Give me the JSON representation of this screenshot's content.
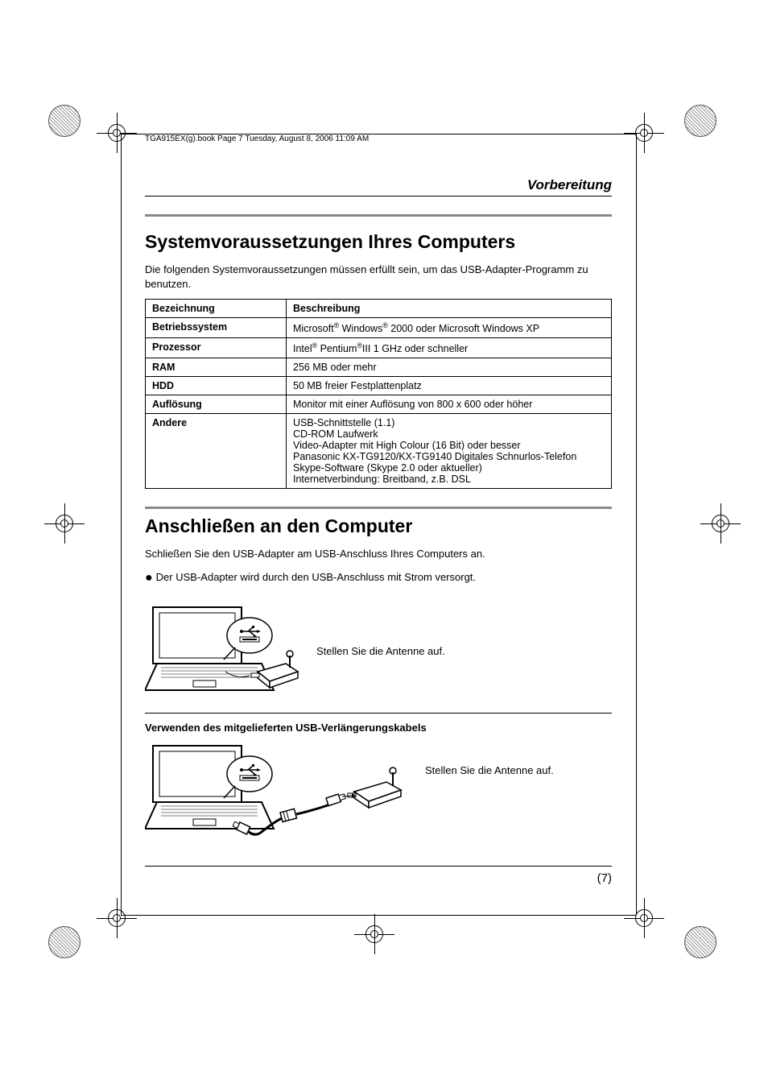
{
  "header": {
    "running_head": "TGA915EX(g).book  Page 7  Tuesday, August 8, 2006  11:09 AM",
    "section_name": "Vorbereitung"
  },
  "section1": {
    "heading": "Systemvoraussetzungen Ihres Computers",
    "intro": "Die folgenden Systemvoraussetzungen müssen erfüllt sein, um das USB-Adapter-Programm zu benutzen."
  },
  "table": {
    "columns": [
      "Bezeichnung",
      "Beschreibung"
    ],
    "rows": [
      {
        "label": "Betriebssystem",
        "value_html": "Microsoft<span class=\"sup\">®</span> Windows<span class=\"sup\">®</span> 2000 oder Microsoft Windows XP"
      },
      {
        "label": "Prozessor",
        "value_html": "Intel<span class=\"sup\">®</span> Pentium<span class=\"sup\">®</span>III 1 GHz oder schneller"
      },
      {
        "label": "RAM",
        "value_html": "256 MB oder mehr"
      },
      {
        "label": "HDD",
        "value_html": "50 MB freier Festplattenplatz"
      },
      {
        "label": "Auflösung",
        "value_html": "Monitor mit einer Auflösung von 800 x 600 oder höher"
      },
      {
        "label": "Andere",
        "value_html": "USB-Schnittstelle (1.1)<br>CD-ROM Laufwerk<br>Video-Adapter mit High Colour (16 Bit) oder besser<br>Panasonic KX-TG9120/KX-TG9140 Digitales Schnurlos-Telefon<br>Skype-Software (Skype 2.0 oder aktueller)<br>Internetverbindung: Breitband, z.B. DSL"
      }
    ]
  },
  "section2": {
    "heading": "Anschließen an den Computer",
    "line1": "Schließen Sie den USB-Adapter am USB-Anschluss Ihres Computers an.",
    "bullet": "Der USB-Adapter wird durch den USB-Anschluss mit Strom versorgt.",
    "antenna_caption": "Stellen Sie die Antenne auf.",
    "sub_heading": "Verwenden des mitgelieferten USB-Verlängerungskabels"
  },
  "footer": {
    "page_number": "(7)"
  },
  "style": {
    "rule_color": "#888888",
    "text_color": "#000000",
    "font_family": "Arial"
  }
}
